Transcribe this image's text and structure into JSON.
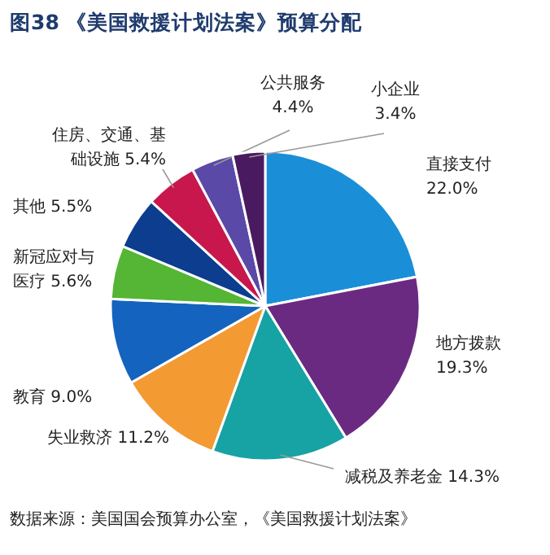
{
  "chart_data": {
    "type": "pie",
    "title": "图38 《美国救援计划法案》预算分配",
    "categories": [
      "直接支付",
      "地方拨款",
      "减税及养老金",
      "失业救济",
      "教育",
      "新冠应对与医疗",
      "其他",
      "住房、交通、基础设施",
      "公共服务",
      "小企业"
    ],
    "values": [
      22.0,
      19.3,
      14.3,
      11.2,
      9.0,
      5.6,
      5.5,
      5.4,
      4.4,
      3.4
    ],
    "value_labels": [
      "22.0%",
      "19.3%",
      "14.3%",
      "11.2%",
      "9.0%",
      "5.6%",
      "5.5%",
      "5.4%",
      "4.4%",
      "3.4%"
    ],
    "colors": [
      "#1a8fd8",
      "#6b2a82",
      "#17a2a4",
      "#f39a33",
      "#1463bf",
      "#55b534",
      "#0c3d8f",
      "#c8174c",
      "#5a49a6",
      "#4a1a60"
    ],
    "annotations": [
      "数据来源：美国国会预算办公室，《美国救援计划法案》"
    ]
  }
}
